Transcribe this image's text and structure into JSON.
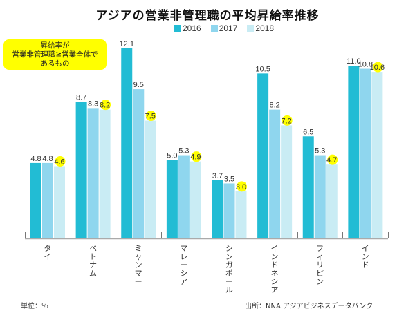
{
  "chart_data": {
    "type": "bar",
    "title": "アジアの営業非管理職の平均昇給率推移",
    "categories": [
      "タイ",
      "ベトナム",
      "ミャンマー",
      "マレーシア",
      "シンガポール",
      "インドネシア",
      "フィリピン",
      "インド"
    ],
    "series": [
      {
        "name": "2016",
        "color": "#22bcd4",
        "values": [
          4.8,
          8.7,
          12.1,
          5.0,
          3.7,
          10.5,
          6.5,
          11.0
        ]
      },
      {
        "name": "2017",
        "color": "#8fd6ee",
        "values": [
          4.8,
          8.3,
          9.5,
          5.3,
          3.5,
          8.2,
          5.3,
          10.8
        ]
      },
      {
        "name": "2018",
        "color": "#c9ecf4",
        "values": [
          4.6,
          8.2,
          7.5,
          4.9,
          3.0,
          7.2,
          4.7,
          10.6
        ]
      }
    ],
    "value_labels": [
      [
        "4.8",
        "4.8",
        "4.6"
      ],
      [
        "8.7",
        "8.3",
        "8.2"
      ],
      [
        "12.1",
        "9.5",
        "7.5"
      ],
      [
        "5.0",
        "5.3",
        "4.9"
      ],
      [
        "3.7",
        "3.5",
        "3.0"
      ],
      [
        "10.5",
        "8.2",
        "7.2"
      ],
      [
        "6.5",
        "5.3",
        "4.7"
      ],
      [
        "11.0",
        "10.8",
        "10.6"
      ]
    ],
    "highlighted_series": "2018",
    "highlight_color": "#ffff00",
    "xlabel": "",
    "ylabel": "",
    "ylim": [
      0,
      12.1
    ],
    "grid": false,
    "legend": "top-center"
  },
  "note": {
    "lines": [
      "昇給率が",
      "営業非管理職≧営業全体で",
      "あるもの"
    ]
  },
  "footer": {
    "unit": "単位：％",
    "source": "出所：NNA アジアビジネスデータバンク"
  }
}
